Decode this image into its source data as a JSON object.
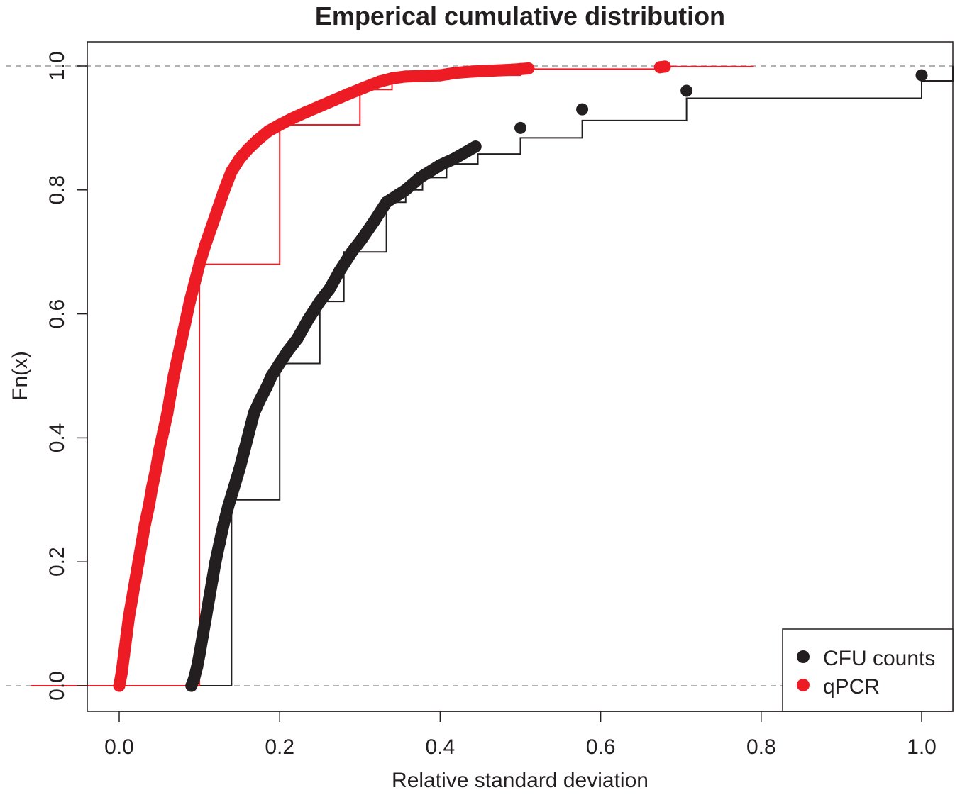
{
  "chart_data": {
    "type": "line",
    "subtype": "ecdf-step",
    "title": "Emperical cumulative distribution",
    "xlabel": "Relative standard deviation",
    "ylabel": "Fn(x)",
    "xlim": [
      -0.04,
      1.04
    ],
    "ylim": [
      -0.04,
      1.04
    ],
    "x_ticks": [
      "0.0",
      "0.2",
      "0.4",
      "0.6",
      "0.8",
      "1.0"
    ],
    "y_ticks": [
      "0.0",
      "0.2",
      "0.4",
      "0.6",
      "0.8",
      "1.0"
    ],
    "reference_lines": [
      0,
      1
    ],
    "grid": false,
    "legend_position": "bottom-right",
    "series": [
      {
        "name": "CFU counts",
        "color": "#231f20",
        "points": [
          [
            0.09,
            0.0
          ],
          [
            0.093,
            0.01
          ],
          [
            0.097,
            0.03
          ],
          [
            0.1,
            0.05
          ],
          [
            0.104,
            0.08
          ],
          [
            0.108,
            0.11
          ],
          [
            0.112,
            0.14
          ],
          [
            0.116,
            0.17
          ],
          [
            0.12,
            0.2
          ],
          [
            0.125,
            0.23
          ],
          [
            0.13,
            0.26
          ],
          [
            0.136,
            0.29
          ],
          [
            0.143,
            0.32
          ],
          [
            0.15,
            0.35
          ],
          [
            0.156,
            0.38
          ],
          [
            0.162,
            0.41
          ],
          [
            0.168,
            0.44
          ],
          [
            0.175,
            0.46
          ],
          [
            0.183,
            0.48
          ],
          [
            0.19,
            0.5
          ],
          [
            0.2,
            0.52
          ],
          [
            0.21,
            0.54
          ],
          [
            0.222,
            0.56
          ],
          [
            0.235,
            0.59
          ],
          [
            0.25,
            0.62
          ],
          [
            0.262,
            0.64
          ],
          [
            0.275,
            0.67
          ],
          [
            0.29,
            0.7
          ],
          [
            0.302,
            0.72
          ],
          [
            0.318,
            0.75
          ],
          [
            0.333,
            0.78
          ],
          [
            0.357,
            0.8
          ],
          [
            0.375,
            0.82
          ],
          [
            0.4,
            0.84
          ],
          [
            0.417,
            0.85
          ],
          [
            0.444,
            0.87
          ],
          [
            0.5,
            0.9
          ],
          [
            0.577,
            0.93
          ],
          [
            0.707,
            0.96
          ],
          [
            1.0,
            0.985
          ]
        ],
        "steps": [
          [
            0.09,
            0.0
          ],
          [
            0.14,
            0.3
          ],
          [
            0.2,
            0.52
          ],
          [
            0.25,
            0.62
          ],
          [
            0.28,
            0.7
          ],
          [
            0.333,
            0.78
          ],
          [
            0.357,
            0.8
          ],
          [
            0.378,
            0.82
          ],
          [
            0.408,
            0.842
          ],
          [
            0.447,
            0.858
          ],
          [
            0.5,
            0.884
          ],
          [
            0.577,
            0.912
          ],
          [
            0.707,
            0.948
          ],
          [
            1.0,
            0.976
          ],
          [
            1.04,
            1.0
          ]
        ]
      },
      {
        "name": "qPCR",
        "color": "#ed1c24",
        "points": [
          [
            0.0,
            0.0
          ],
          [
            0.003,
            0.02
          ],
          [
            0.006,
            0.05
          ],
          [
            0.009,
            0.08
          ],
          [
            0.012,
            0.11
          ],
          [
            0.016,
            0.14
          ],
          [
            0.02,
            0.17
          ],
          [
            0.024,
            0.2
          ],
          [
            0.028,
            0.23
          ],
          [
            0.032,
            0.26
          ],
          [
            0.037,
            0.29
          ],
          [
            0.041,
            0.32
          ],
          [
            0.046,
            0.35
          ],
          [
            0.05,
            0.38
          ],
          [
            0.055,
            0.41
          ],
          [
            0.06,
            0.44
          ],
          [
            0.064,
            0.47
          ],
          [
            0.068,
            0.5
          ],
          [
            0.073,
            0.53
          ],
          [
            0.078,
            0.56
          ],
          [
            0.083,
            0.59
          ],
          [
            0.088,
            0.62
          ],
          [
            0.094,
            0.65
          ],
          [
            0.1,
            0.68
          ],
          [
            0.107,
            0.71
          ],
          [
            0.115,
            0.74
          ],
          [
            0.123,
            0.77
          ],
          [
            0.131,
            0.8
          ],
          [
            0.14,
            0.83
          ],
          [
            0.15,
            0.85
          ],
          [
            0.16,
            0.865
          ],
          [
            0.172,
            0.88
          ],
          [
            0.186,
            0.895
          ],
          [
            0.2,
            0.905
          ],
          [
            0.215,
            0.915
          ],
          [
            0.232,
            0.925
          ],
          [
            0.25,
            0.935
          ],
          [
            0.268,
            0.945
          ],
          [
            0.286,
            0.955
          ],
          [
            0.305,
            0.965
          ],
          [
            0.325,
            0.975
          ],
          [
            0.34,
            0.98
          ],
          [
            0.357,
            0.983
          ],
          [
            0.4,
            0.985
          ],
          [
            0.41,
            0.987
          ],
          [
            0.42,
            0.989
          ],
          [
            0.44,
            0.991
          ],
          [
            0.49,
            0.994
          ],
          [
            0.5,
            0.995
          ],
          [
            0.51,
            0.996
          ],
          [
            0.674,
            0.998
          ],
          [
            0.68,
            0.999
          ]
        ],
        "steps": [
          [
            -0.11,
            0.0
          ],
          [
            0.0,
            0.0
          ],
          [
            0.1,
            0.68
          ],
          [
            0.2,
            0.905
          ],
          [
            0.3,
            0.962
          ],
          [
            0.34,
            0.98
          ],
          [
            0.4,
            0.985
          ],
          [
            0.5,
            0.995
          ],
          [
            0.68,
            0.999
          ],
          [
            0.79,
            1.0
          ]
        ]
      }
    ]
  }
}
